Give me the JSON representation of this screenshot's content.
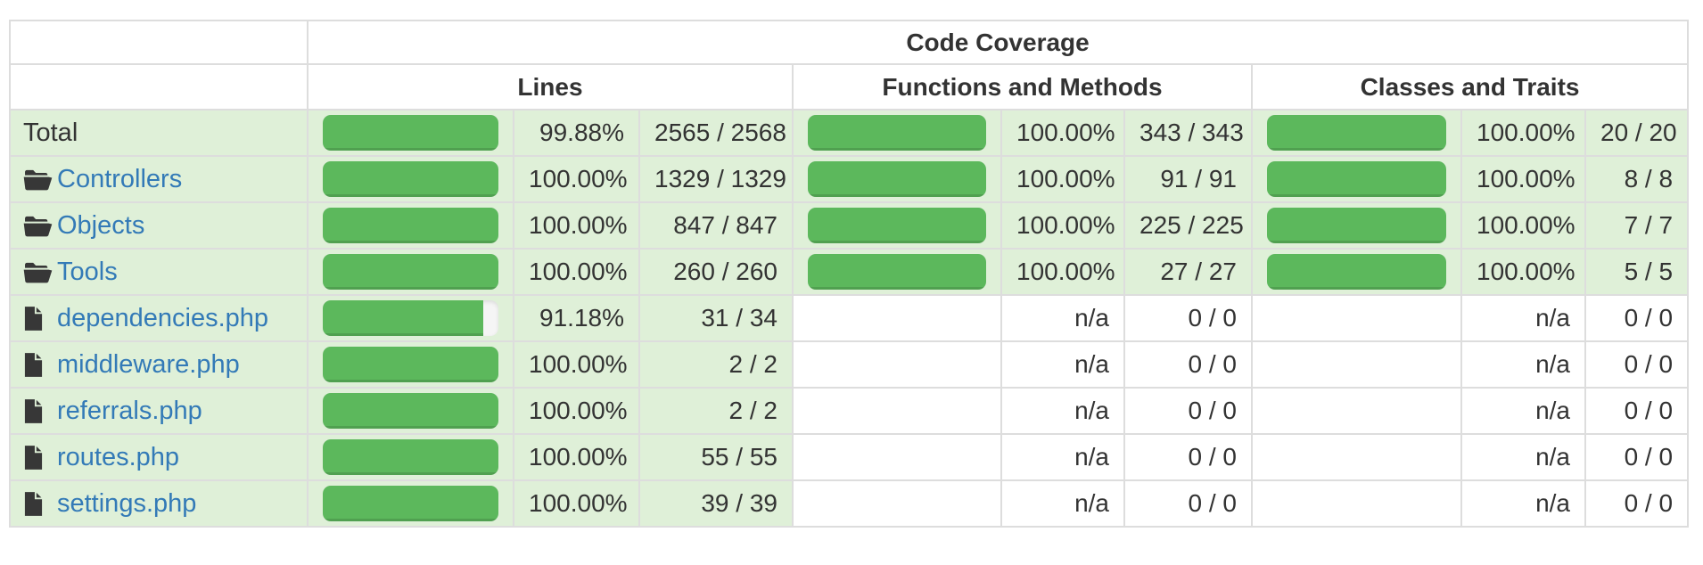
{
  "header": {
    "title": "Code Coverage",
    "column_groups": [
      {
        "label": "Lines"
      },
      {
        "label": "Functions and Methods"
      },
      {
        "label": "Classes and Traits"
      }
    ]
  },
  "colors": {
    "success_row_bg": "#dff0d8",
    "bar_fill_green": "#5cb85c",
    "bar_track": "#f5f5f5",
    "link_blue": "#337ab7",
    "border_gray": "#dddddd",
    "text_dark": "#333333"
  },
  "rows": [
    {
      "label": "Total",
      "icon": "none",
      "link": false,
      "lines": {
        "percent": "99.88%",
        "bar_percent": 99.88,
        "ratio": "2565 / 2568",
        "covered": true
      },
      "functions": {
        "percent": "100.00%",
        "bar_percent": 100,
        "ratio": "343 / 343",
        "covered": true
      },
      "classes": {
        "percent": "100.00%",
        "bar_percent": 100,
        "ratio": "20 / 20",
        "covered": true
      }
    },
    {
      "label": "Controllers",
      "icon": "folder-open",
      "link": true,
      "lines": {
        "percent": "100.00%",
        "bar_percent": 100,
        "ratio": "1329 / 1329",
        "covered": true
      },
      "functions": {
        "percent": "100.00%",
        "bar_percent": 100,
        "ratio": "91 / 91",
        "covered": true
      },
      "classes": {
        "percent": "100.00%",
        "bar_percent": 100,
        "ratio": "8 / 8",
        "covered": true
      }
    },
    {
      "label": "Objects",
      "icon": "folder-open",
      "link": true,
      "lines": {
        "percent": "100.00%",
        "bar_percent": 100,
        "ratio": "847 / 847",
        "covered": true
      },
      "functions": {
        "percent": "100.00%",
        "bar_percent": 100,
        "ratio": "225 / 225",
        "covered": true
      },
      "classes": {
        "percent": "100.00%",
        "bar_percent": 100,
        "ratio": "7 / 7",
        "covered": true
      }
    },
    {
      "label": "Tools",
      "icon": "folder-open",
      "link": true,
      "lines": {
        "percent": "100.00%",
        "bar_percent": 100,
        "ratio": "260 / 260",
        "covered": true
      },
      "functions": {
        "percent": "100.00%",
        "bar_percent": 100,
        "ratio": "27 / 27",
        "covered": true
      },
      "classes": {
        "percent": "100.00%",
        "bar_percent": 100,
        "ratio": "5 / 5",
        "covered": true
      }
    },
    {
      "label": "dependencies.php",
      "icon": "file",
      "link": true,
      "lines": {
        "percent": "91.18%",
        "bar_percent": 91.18,
        "ratio": "31 / 34",
        "covered": true
      },
      "functions": {
        "percent": "n/a",
        "bar_percent": null,
        "ratio": "0 / 0",
        "covered": false
      },
      "classes": {
        "percent": "n/a",
        "bar_percent": null,
        "ratio": "0 / 0",
        "covered": false
      }
    },
    {
      "label": "middleware.php",
      "icon": "file",
      "link": true,
      "lines": {
        "percent": "100.00%",
        "bar_percent": 100,
        "ratio": "2 / 2",
        "covered": true
      },
      "functions": {
        "percent": "n/a",
        "bar_percent": null,
        "ratio": "0 / 0",
        "covered": false
      },
      "classes": {
        "percent": "n/a",
        "bar_percent": null,
        "ratio": "0 / 0",
        "covered": false
      }
    },
    {
      "label": "referrals.php",
      "icon": "file",
      "link": true,
      "lines": {
        "percent": "100.00%",
        "bar_percent": 100,
        "ratio": "2 / 2",
        "covered": true
      },
      "functions": {
        "percent": "n/a",
        "bar_percent": null,
        "ratio": "0 / 0",
        "covered": false
      },
      "classes": {
        "percent": "n/a",
        "bar_percent": null,
        "ratio": "0 / 0",
        "covered": false
      }
    },
    {
      "label": "routes.php",
      "icon": "file",
      "link": true,
      "lines": {
        "percent": "100.00%",
        "bar_percent": 100,
        "ratio": "55 / 55",
        "covered": true
      },
      "functions": {
        "percent": "n/a",
        "bar_percent": null,
        "ratio": "0 / 0",
        "covered": false
      },
      "classes": {
        "percent": "n/a",
        "bar_percent": null,
        "ratio": "0 / 0",
        "covered": false
      }
    },
    {
      "label": "settings.php",
      "icon": "file",
      "link": true,
      "lines": {
        "percent": "100.00%",
        "bar_percent": 100,
        "ratio": "39 / 39",
        "covered": true
      },
      "functions": {
        "percent": "n/a",
        "bar_percent": null,
        "ratio": "0 / 0",
        "covered": false
      },
      "classes": {
        "percent": "n/a",
        "bar_percent": null,
        "ratio": "0 / 0",
        "covered": false
      }
    }
  ]
}
